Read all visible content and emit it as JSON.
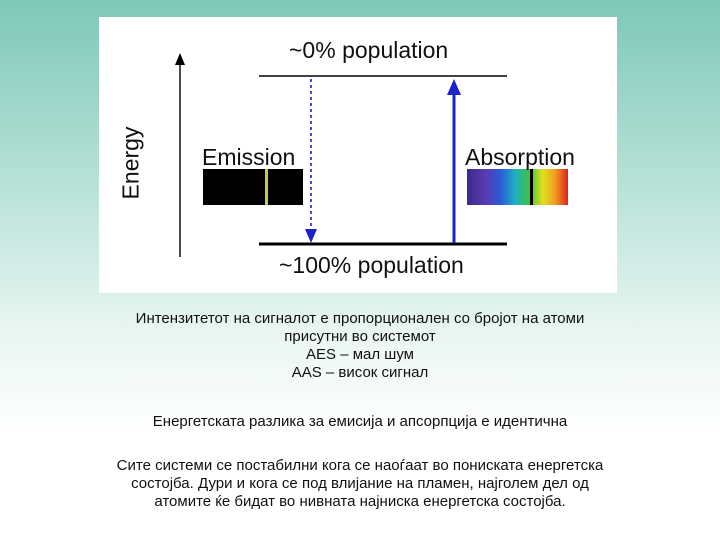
{
  "diagram": {
    "top_level_label": "~0% population",
    "bottom_level_label": "~100% population",
    "energy_axis_label": "Energy",
    "emission_label": "Emission",
    "absorption_label": "Absorption",
    "colors": {
      "arrow_blue": "#1a22c8",
      "level_line": "#000000",
      "emission_line": "#c8c850",
      "absorption_line": "#000000"
    }
  },
  "text": {
    "paragraph1": [
      "Интензитетот на сигналот е пропорционален со бројот на атоми",
      "присутни во системот",
      "AES – мал шум",
      "AAS – висок сигнал"
    ],
    "paragraph2": "Енергетската разлика за емисија и апсорпција е идентична",
    "paragraph3": [
      "Сите системи се постабилни кога се наоѓаат во пониската енергетска",
      "состојба. Дури и кога се под влијание на пламен, најголем дел од",
      "атомите ќе бидат во нивната најниска енергетска состојба."
    ]
  }
}
